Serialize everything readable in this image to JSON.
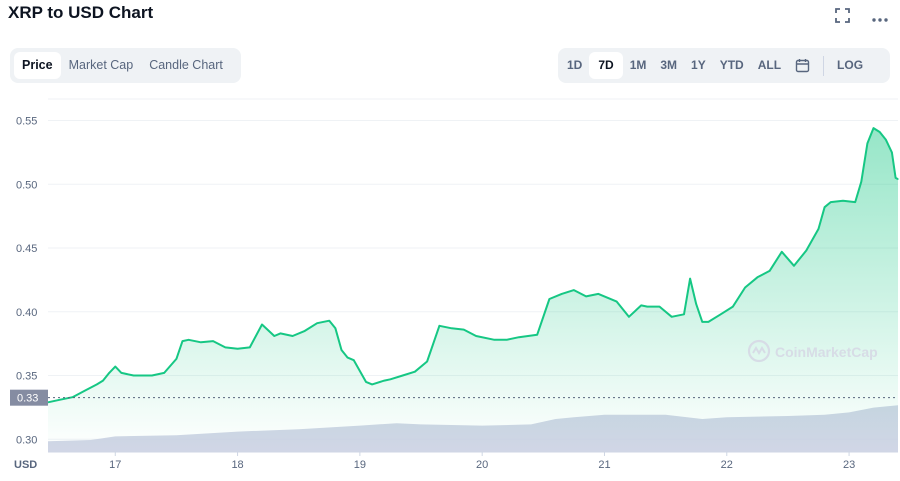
{
  "title": "XRP to USD Chart",
  "toolbar": {
    "types": [
      "Price",
      "Market Cap",
      "Candle Chart"
    ],
    "active_type": "Price",
    "ranges": [
      "1D",
      "7D",
      "1M",
      "3M",
      "1Y",
      "YTD",
      "ALL"
    ],
    "active_range": "7D",
    "log_label": "LOG"
  },
  "colors": {
    "line": "#16c784",
    "volume": "#c9cfe2",
    "grid": "#eff2f5",
    "text": "#58667e"
  },
  "chart_data": {
    "type": "area",
    "ylim": [
      0.29,
      0.57
    ],
    "xlim": [
      16.45,
      23.4
    ],
    "yticks": [
      "0.55",
      "0.50",
      "0.45",
      "0.40",
      "0.35",
      "0.30"
    ],
    "xticks": [
      "17",
      "18",
      "19",
      "20",
      "21",
      "22",
      "23"
    ],
    "y_unit_label": "USD",
    "current_price_label": "0.33",
    "current_price_line": 0.3326,
    "watermark": "CoinMarketCap",
    "series": [
      {
        "x": [
          16.45,
          16.55,
          16.65,
          16.75,
          16.85,
          16.9,
          16.95,
          17.0,
          17.05,
          17.15,
          17.3,
          17.4,
          17.5,
          17.55,
          17.6,
          17.7,
          17.8,
          17.9,
          18.0,
          18.1,
          18.2,
          18.3,
          18.35,
          18.45,
          18.55,
          18.65,
          18.75,
          18.8,
          18.85,
          18.9,
          18.95,
          19.05,
          19.1,
          19.2,
          19.25,
          19.35,
          19.45,
          19.55,
          19.65,
          19.75,
          19.85,
          19.95,
          20.1,
          20.2,
          20.3,
          20.45,
          20.55,
          20.65,
          20.75,
          20.85,
          20.95,
          21.1,
          21.2,
          21.3,
          21.35,
          21.45,
          21.55,
          21.65,
          21.7,
          21.75,
          21.8,
          21.85,
          21.95,
          22.05,
          22.15,
          22.25,
          22.35,
          22.45,
          22.55,
          22.65,
          22.75,
          22.8,
          22.85,
          22.95,
          23.05,
          23.1,
          23.15,
          23.2,
          23.25,
          23.3,
          23.35,
          23.38,
          23.4
        ],
        "y": [
          0.329,
          0.331,
          0.333,
          0.338,
          0.343,
          0.346,
          0.352,
          0.357,
          0.352,
          0.35,
          0.35,
          0.352,
          0.363,
          0.377,
          0.378,
          0.376,
          0.377,
          0.372,
          0.371,
          0.372,
          0.39,
          0.381,
          0.383,
          0.381,
          0.385,
          0.391,
          0.393,
          0.387,
          0.37,
          0.364,
          0.362,
          0.345,
          0.343,
          0.346,
          0.347,
          0.35,
          0.353,
          0.361,
          0.389,
          0.387,
          0.386,
          0.381,
          0.378,
          0.378,
          0.38,
          0.382,
          0.41,
          0.414,
          0.417,
          0.412,
          0.414,
          0.408,
          0.396,
          0.405,
          0.404,
          0.404,
          0.396,
          0.398,
          0.426,
          0.406,
          0.392,
          0.392,
          0.398,
          0.404,
          0.419,
          0.427,
          0.432,
          0.447,
          0.436,
          0.448,
          0.465,
          0.482,
          0.486,
          0.487,
          0.486,
          0.502,
          0.532,
          0.544,
          0.541,
          0.535,
          0.525,
          0.505,
          0.504
        ]
      }
    ],
    "volume": {
      "x": [
        16.45,
        16.8,
        17.0,
        17.5,
        18.0,
        18.5,
        19.0,
        19.3,
        19.5,
        20.0,
        20.4,
        20.6,
        20.75,
        21.0,
        21.5,
        21.8,
        22.0,
        22.5,
        22.8,
        23.0,
        23.2,
        23.4
      ],
      "v": [
        0.18,
        0.2,
        0.26,
        0.28,
        0.34,
        0.38,
        0.44,
        0.48,
        0.46,
        0.44,
        0.46,
        0.55,
        0.58,
        0.62,
        0.62,
        0.55,
        0.58,
        0.6,
        0.62,
        0.66,
        0.74,
        0.78
      ]
    }
  }
}
